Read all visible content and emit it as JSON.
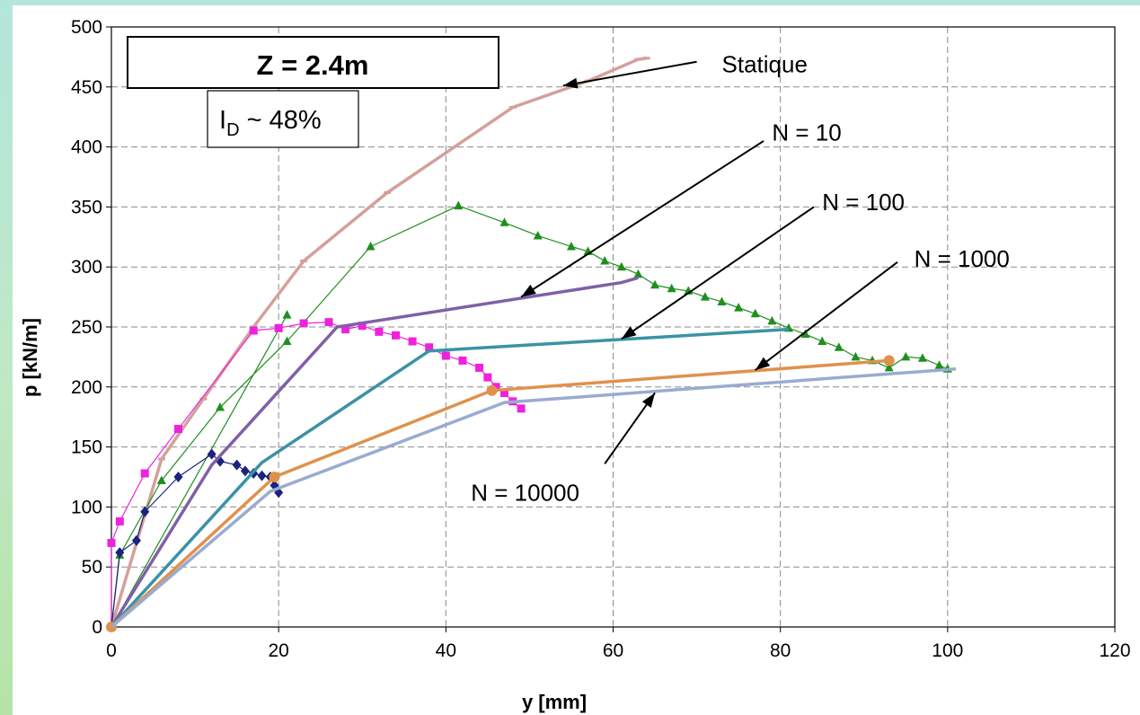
{
  "chart_data": {
    "type": "line",
    "title_box": "Z = 2.4m",
    "id_box": {
      "main": "I",
      "sub": "D",
      "rest": " ~ 48%"
    },
    "xlabel": "y [mm]",
    "ylabel": "p [kN/m]",
    "xlim": [
      0,
      120
    ],
    "ylim": [
      0,
      500
    ],
    "xticks": [
      "0",
      "20",
      "40",
      "60",
      "80",
      "100",
      "120"
    ],
    "yticks": [
      "0",
      "50",
      "100",
      "150",
      "200",
      "250",
      "300",
      "350",
      "400",
      "450",
      "500"
    ],
    "grid": true,
    "series": [
      {
        "name": "Statique",
        "color": "#d4a09b",
        "width": 3.5,
        "marker": "dash",
        "x": [
          0,
          6,
          11,
          17,
          23,
          33,
          48,
          57,
          63,
          64
        ],
        "y": [
          0,
          140,
          190,
          250,
          305,
          362,
          433,
          455,
          473,
          474
        ]
      },
      {
        "color": "#1e8f1e",
        "width": 1.2,
        "marker": "triangle",
        "marker_color": "#1e8f1e",
        "x": [
          0,
          1,
          6,
          13,
          21,
          31,
          41.5,
          47,
          51,
          55,
          57,
          59,
          61,
          63,
          65,
          67,
          69,
          71,
          73,
          75,
          77,
          79,
          81,
          83,
          85,
          87,
          89,
          91,
          93,
          95,
          97,
          99,
          100
        ],
        "y": [
          0,
          60,
          122,
          183,
          238,
          317,
          351,
          337,
          326,
          317,
          313,
          305,
          300,
          294,
          285,
          282,
          280,
          275,
          271,
          266,
          261,
          255,
          249,
          244,
          238,
          233,
          225,
          222,
          216,
          225,
          224,
          218,
          215
        ]
      },
      {
        "color": "#1e8f1e",
        "width": 1.2,
        "marker": "triangle",
        "marker_color": "#1e8f1e",
        "x": [
          0,
          21
        ],
        "y": [
          0,
          260
        ]
      },
      {
        "color": "#ee22dd",
        "width": 1.2,
        "marker": "square",
        "marker_color": "#ee22dd",
        "x": [
          0,
          0,
          1,
          4,
          8,
          17,
          20,
          23,
          26,
          28,
          30,
          32,
          34,
          36,
          38,
          40,
          42,
          44,
          45,
          46,
          47,
          48,
          49
        ],
        "y": [
          0,
          70,
          88,
          128,
          165,
          247,
          249,
          253,
          254,
          248,
          251,
          246,
          243,
          238,
          233,
          226,
          222,
          216,
          208,
          200,
          195,
          188,
          182
        ]
      },
      {
        "color": "#1a237e",
        "width": 1.2,
        "marker": "diamond",
        "marker_color": "#1a237e",
        "x": [
          0,
          1,
          3,
          4,
          8,
          12,
          13,
          15,
          16,
          17,
          18,
          19,
          19.5,
          20
        ],
        "y": [
          0,
          62,
          72,
          96,
          125,
          144,
          138,
          135,
          130,
          128,
          126,
          125,
          118,
          112
        ]
      },
      {
        "name": "N = 10",
        "color": "#8060a8",
        "width": 3.5,
        "marker": "none",
        "x": [
          0,
          12,
          27,
          61,
          63
        ],
        "y": [
          0,
          135,
          250,
          287,
          291
        ]
      },
      {
        "name": "N = 100",
        "color": "#3a93a6",
        "width": 3.5,
        "marker": "none",
        "x": [
          0,
          18,
          38,
          81
        ],
        "y": [
          0,
          137,
          230,
          248
        ]
      },
      {
        "name": "N = 1000",
        "color": "#e0914c",
        "width": 3.5,
        "marker": "circle",
        "marker_color": "#e0914c",
        "x": [
          0,
          19.5,
          45.5,
          93
        ],
        "y": [
          0,
          125,
          197,
          222
        ]
      },
      {
        "name": "N = 10000",
        "color": "#99abd0",
        "width": 3.5,
        "marker": "none",
        "x": [
          0,
          19,
          47,
          101
        ],
        "y": [
          0,
          113,
          187,
          215
        ]
      }
    ],
    "annotations": [
      {
        "text": "Statique",
        "text_at": [
          73,
          469
        ],
        "arrow_from": [
          70,
          471
        ],
        "arrow_to": [
          54,
          451
        ]
      },
      {
        "text": "N = 10",
        "text_at": [
          79,
          412
        ],
        "arrow_from": [
          78,
          405
        ],
        "arrow_to": [
          49,
          275
        ]
      },
      {
        "text": "N = 100",
        "text_at": [
          85,
          354
        ],
        "arrow_from": [
          84,
          350
        ],
        "arrow_to": [
          61,
          240
        ]
      },
      {
        "text": "N = 1000",
        "text_at": [
          96,
          307
        ],
        "arrow_from": [
          94,
          304
        ],
        "arrow_to": [
          77,
          214
        ]
      },
      {
        "text": "N = 10000",
        "text_at": [
          43,
          112
        ],
        "arrow_from": [
          59,
          136
        ],
        "arrow_to": [
          65,
          195
        ]
      }
    ]
  }
}
